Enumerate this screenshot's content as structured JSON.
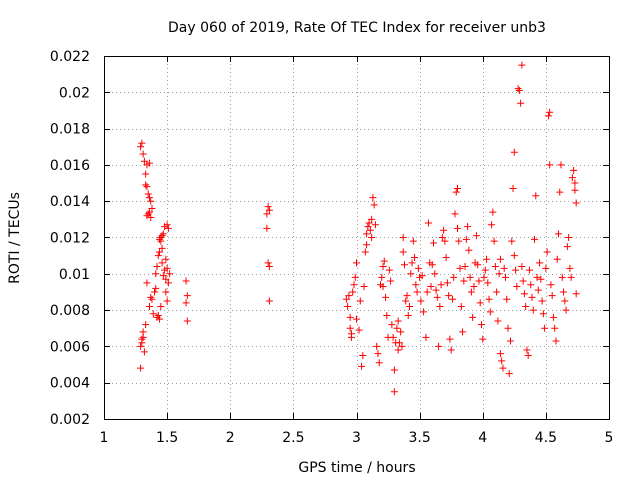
{
  "chart_data": {
    "type": "scatter",
    "title": "Day 060 of 2019, Rate Of TEC Index for receiver unb3",
    "xlabel": "GPS time / hours",
    "ylabel": "ROTI / TECUs",
    "xlim": [
      1,
      5
    ],
    "ylim": [
      0.002,
      0.022
    ],
    "x_ticks": [
      1,
      1.5,
      2,
      2.5,
      3,
      3.5,
      4,
      4.5,
      5
    ],
    "x_tick_labels": [
      "1",
      "1.5",
      "2",
      "2.5",
      "3",
      "3.5",
      "4",
      "4.5",
      "5"
    ],
    "y_ticks": [
      0.002,
      0.004,
      0.006,
      0.008,
      0.01,
      0.012,
      0.014,
      0.016,
      0.018,
      0.02,
      0.022
    ],
    "y_tick_labels": [
      "0.002",
      "0.004",
      "0.006",
      "0.008",
      "0.01",
      "0.012",
      "0.014",
      "0.016",
      "0.018",
      "0.02",
      "0.022"
    ],
    "grid": true,
    "marker": "+",
    "color": "#ff0000",
    "series": [
      {
        "name": "ROTI",
        "points": [
          [
            1.29,
            0.017
          ],
          [
            1.3,
            0.0172
          ],
          [
            1.31,
            0.0166
          ],
          [
            1.32,
            0.0162
          ],
          [
            1.34,
            0.016
          ],
          [
            1.36,
            0.0161
          ],
          [
            1.33,
            0.0155
          ],
          [
            1.33,
            0.0149
          ],
          [
            1.34,
            0.0148
          ],
          [
            1.35,
            0.0144
          ],
          [
            1.36,
            0.0142
          ],
          [
            1.37,
            0.014
          ],
          [
            1.38,
            0.0136
          ],
          [
            1.36,
            0.0134
          ],
          [
            1.34,
            0.0132
          ],
          [
            1.35,
            0.0133
          ],
          [
            1.37,
            0.0131
          ],
          [
            1.29,
            0.0048
          ],
          [
            1.29,
            0.006
          ],
          [
            1.3,
            0.0062
          ],
          [
            1.3,
            0.0064
          ],
          [
            1.31,
            0.0065
          ],
          [
            1.31,
            0.0068
          ],
          [
            1.32,
            0.0057
          ],
          [
            1.33,
            0.0072
          ],
          [
            1.34,
            0.0095
          ],
          [
            1.36,
            0.0082
          ],
          [
            1.37,
            0.0087
          ],
          [
            1.38,
            0.0086
          ],
          [
            1.39,
            0.0078
          ],
          [
            1.4,
            0.009
          ],
          [
            1.41,
            0.0092
          ],
          [
            1.42,
            0.0076
          ],
          [
            1.43,
            0.0077
          ],
          [
            1.44,
            0.0075
          ],
          [
            1.45,
            0.0082
          ],
          [
            1.41,
            0.01
          ],
          [
            1.42,
            0.0104
          ],
          [
            1.43,
            0.011
          ],
          [
            1.44,
            0.0112
          ],
          [
            1.45,
            0.0118
          ],
          [
            1.46,
            0.0114
          ],
          [
            1.46,
            0.0106
          ],
          [
            1.47,
            0.0099
          ],
          [
            1.48,
            0.0102
          ],
          [
            1.49,
            0.0097
          ],
          [
            1.49,
            0.0108
          ],
          [
            1.5,
            0.0103
          ],
          [
            1.51,
            0.0095
          ],
          [
            1.51,
            0.0125
          ],
          [
            1.5,
            0.0127
          ],
          [
            1.48,
            0.0126
          ],
          [
            1.47,
            0.0122
          ],
          [
            1.46,
            0.0121
          ],
          [
            1.45,
            0.012
          ],
          [
            1.44,
            0.0119
          ],
          [
            1.52,
            0.01
          ],
          [
            1.49,
            0.009
          ],
          [
            1.5,
            0.0085
          ],
          [
            1.65,
            0.0096
          ],
          [
            1.66,
            0.0088
          ],
          [
            1.65,
            0.0084
          ],
          [
            1.66,
            0.0074
          ],
          [
            2.29,
            0.0133
          ],
          [
            2.3,
            0.0137
          ],
          [
            2.31,
            0.0135
          ],
          [
            2.29,
            0.0125
          ],
          [
            2.3,
            0.0106
          ],
          [
            2.31,
            0.0104
          ],
          [
            2.31,
            0.0085
          ],
          [
            2.92,
            0.0086
          ],
          [
            2.93,
            0.0082
          ],
          [
            2.94,
            0.0088
          ],
          [
            2.95,
            0.0076
          ],
          [
            2.95,
            0.007
          ],
          [
            2.96,
            0.0067
          ],
          [
            2.96,
            0.0065
          ],
          [
            2.97,
            0.009
          ],
          [
            2.98,
            0.0094
          ],
          [
            2.99,
            0.0098
          ],
          [
            3.0,
            0.0106
          ],
          [
            3.0,
            0.0075
          ],
          [
            3.02,
            0.0069
          ],
          [
            3.03,
            0.0085
          ],
          [
            3.04,
            0.0049
          ],
          [
            3.05,
            0.0055
          ],
          [
            3.06,
            0.0093
          ],
          [
            3.07,
            0.0112
          ],
          [
            3.08,
            0.0116
          ],
          [
            3.08,
            0.0122
          ],
          [
            3.09,
            0.0126
          ],
          [
            3.1,
            0.0128
          ],
          [
            3.11,
            0.0124
          ],
          [
            3.12,
            0.012
          ],
          [
            3.12,
            0.013
          ],
          [
            3.13,
            0.0142
          ],
          [
            3.14,
            0.0138
          ],
          [
            3.15,
            0.0127
          ],
          [
            3.16,
            0.006
          ],
          [
            3.17,
            0.0056
          ],
          [
            3.18,
            0.0051
          ],
          [
            3.19,
            0.0094
          ],
          [
            3.2,
            0.0098
          ],
          [
            3.21,
            0.0093
          ],
          [
            3.21,
            0.0104
          ],
          [
            3.22,
            0.0107
          ],
          [
            3.23,
            0.0087
          ],
          [
            3.24,
            0.0077
          ],
          [
            3.25,
            0.0065
          ],
          [
            3.26,
            0.0102
          ],
          [
            3.27,
            0.0096
          ],
          [
            3.28,
            0.0072
          ],
          [
            3.29,
            0.0065
          ],
          [
            3.3,
            0.0035
          ],
          [
            3.3,
            0.0047
          ],
          [
            3.31,
            0.0062
          ],
          [
            3.32,
            0.007
          ],
          [
            3.33,
            0.0074
          ],
          [
            3.33,
            0.0058
          ],
          [
            3.34,
            0.0062
          ],
          [
            3.35,
            0.0068
          ],
          [
            3.36,
            0.006
          ],
          [
            3.37,
            0.012
          ],
          [
            3.37,
            0.0112
          ],
          [
            3.38,
            0.0105
          ],
          [
            3.39,
            0.0085
          ],
          [
            3.4,
            0.0088
          ],
          [
            3.41,
            0.0077
          ],
          [
            3.42,
            0.0082
          ],
          [
            3.43,
            0.01
          ],
          [
            3.44,
            0.0106
          ],
          [
            3.45,
            0.0118
          ],
          [
            3.46,
            0.0109
          ],
          [
            3.47,
            0.0094
          ],
          [
            3.48,
            0.009
          ],
          [
            3.49,
            0.0103
          ],
          [
            3.5,
            0.0098
          ],
          [
            3.51,
            0.0085
          ],
          [
            3.52,
            0.0099
          ],
          [
            3.53,
            0.0079
          ],
          [
            3.55,
            0.0065
          ],
          [
            3.56,
            0.009
          ],
          [
            3.57,
            0.0128
          ],
          [
            3.58,
            0.0106
          ],
          [
            3.59,
            0.0093
          ],
          [
            3.6,
            0.0105
          ],
          [
            3.61,
            0.0117
          ],
          [
            3.62,
            0.01
          ],
          [
            3.63,
            0.0091
          ],
          [
            3.64,
            0.0087
          ],
          [
            3.65,
            0.006
          ],
          [
            3.66,
            0.0082
          ],
          [
            3.67,
            0.0094
          ],
          [
            3.68,
            0.012
          ],
          [
            3.69,
            0.0124
          ],
          [
            3.7,
            0.0118
          ],
          [
            3.71,
            0.0109
          ],
          [
            3.72,
            0.0095
          ],
          [
            3.73,
            0.0088
          ],
          [
            3.74,
            0.0064
          ],
          [
            3.75,
            0.0058
          ],
          [
            3.76,
            0.0086
          ],
          [
            3.77,
            0.0098
          ],
          [
            3.78,
            0.0133
          ],
          [
            3.79,
            0.0145
          ],
          [
            3.8,
            0.0147
          ],
          [
            3.8,
            0.0125
          ],
          [
            3.81,
            0.0118
          ],
          [
            3.82,
            0.0103
          ],
          [
            3.83,
            0.0082
          ],
          [
            3.84,
            0.0068
          ],
          [
            3.85,
            0.0096
          ],
          [
            3.86,
            0.0104
          ],
          [
            3.87,
            0.0119
          ],
          [
            3.88,
            0.0126
          ],
          [
            3.89,
            0.0113
          ],
          [
            3.9,
            0.0098
          ],
          [
            3.91,
            0.009
          ],
          [
            3.92,
            0.0076
          ],
          [
            3.93,
            0.0093
          ],
          [
            3.94,
            0.0106
          ],
          [
            3.95,
            0.0121
          ],
          [
            3.96,
            0.0105
          ],
          [
            3.97,
            0.0096
          ],
          [
            3.98,
            0.0084
          ],
          [
            3.99,
            0.0072
          ],
          [
            4.0,
            0.0064
          ],
          [
            4.01,
            0.0098
          ],
          [
            4.02,
            0.0102
          ],
          [
            4.03,
            0.0108
          ],
          [
            4.04,
            0.0095
          ],
          [
            4.05,
            0.0086
          ],
          [
            4.06,
            0.0079
          ],
          [
            4.07,
            0.0127
          ],
          [
            4.08,
            0.0134
          ],
          [
            4.09,
            0.0118
          ],
          [
            4.1,
            0.0104
          ],
          [
            4.11,
            0.009
          ],
          [
            4.12,
            0.0074
          ],
          [
            4.13,
            0.01
          ],
          [
            4.14,
            0.0108
          ],
          [
            4.14,
            0.0056
          ],
          [
            4.15,
            0.0052
          ],
          [
            4.16,
            0.0048
          ],
          [
            4.17,
            0.0103
          ],
          [
            4.18,
            0.0098
          ],
          [
            4.19,
            0.0086
          ],
          [
            4.2,
            0.007
          ],
          [
            4.21,
            0.0045
          ],
          [
            4.22,
            0.0063
          ],
          [
            4.23,
            0.0118
          ],
          [
            4.24,
            0.0147
          ],
          [
            4.25,
            0.0167
          ],
          [
            4.25,
            0.011
          ],
          [
            4.26,
            0.0102
          ],
          [
            4.27,
            0.0093
          ],
          [
            4.28,
            0.0202
          ],
          [
            4.29,
            0.0201
          ],
          [
            4.3,
            0.0194
          ],
          [
            4.31,
            0.0215
          ],
          [
            4.31,
            0.0104
          ],
          [
            4.32,
            0.0096
          ],
          [
            4.33,
            0.0089
          ],
          [
            4.34,
            0.0082
          ],
          [
            4.35,
            0.0058
          ],
          [
            4.36,
            0.0055
          ],
          [
            4.37,
            0.0102
          ],
          [
            4.38,
            0.0094
          ],
          [
            4.39,
            0.0087
          ],
          [
            4.4,
            0.008
          ],
          [
            4.41,
            0.0119
          ],
          [
            4.42,
            0.0143
          ],
          [
            4.43,
            0.0098
          ],
          [
            4.44,
            0.0091
          ],
          [
            4.45,
            0.0106
          ],
          [
            4.46,
            0.0097
          ],
          [
            4.47,
            0.0085
          ],
          [
            4.48,
            0.0078
          ],
          [
            4.49,
            0.007
          ],
          [
            4.5,
            0.0103
          ],
          [
            4.51,
            0.0112
          ],
          [
            4.52,
            0.0187
          ],
          [
            4.53,
            0.0189
          ],
          [
            4.53,
            0.016
          ],
          [
            4.54,
            0.0094
          ],
          [
            4.55,
            0.0088
          ],
          [
            4.56,
            0.0076
          ],
          [
            4.57,
            0.007
          ],
          [
            4.58,
            0.0063
          ],
          [
            4.59,
            0.0108
          ],
          [
            4.6,
            0.0122
          ],
          [
            4.61,
            0.0145
          ],
          [
            4.62,
            0.016
          ],
          [
            4.63,
            0.0098
          ],
          [
            4.64,
            0.009
          ],
          [
            4.65,
            0.0085
          ],
          [
            4.66,
            0.008
          ],
          [
            4.67,
            0.0115
          ],
          [
            4.68,
            0.012
          ],
          [
            4.69,
            0.0103
          ],
          [
            4.7,
            0.0098
          ],
          [
            4.71,
            0.0153
          ],
          [
            4.72,
            0.0157
          ],
          [
            4.73,
            0.015
          ],
          [
            4.73,
            0.0146
          ],
          [
            4.74,
            0.0139
          ],
          [
            4.74,
            0.0089
          ]
        ]
      }
    ]
  }
}
